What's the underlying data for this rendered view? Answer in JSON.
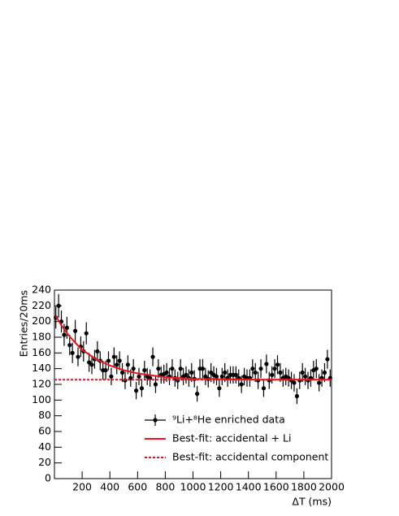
{
  "chart_data": {
    "type": "scatter",
    "xlabel": "ΔT (ms)",
    "ylabel": "Entries/20ms",
    "xlim": [
      0,
      2000
    ],
    "ylim": [
      0,
      240
    ],
    "xticks": [
      200,
      400,
      600,
      800,
      1000,
      1200,
      1400,
      1600,
      1800,
      2000
    ],
    "yticks": [
      0,
      20,
      40,
      60,
      80,
      100,
      120,
      140,
      160,
      180,
      200,
      220,
      240
    ],
    "legend": "bottom-right",
    "series": [
      {
        "name": "⁹Li+⁸He enriched data",
        "color": "#000000",
        "style": "points",
        "x": [
          10,
          30,
          50,
          70,
          90,
          110,
          130,
          150,
          170,
          190,
          210,
          230,
          250,
          270,
          290,
          310,
          330,
          350,
          370,
          390,
          410,
          430,
          450,
          470,
          490,
          510,
          530,
          550,
          570,
          590,
          610,
          630,
          650,
          670,
          690,
          710,
          730,
          750,
          770,
          790,
          810,
          830,
          850,
          870,
          890,
          910,
          930,
          950,
          970,
          990,
          1010,
          1030,
          1050,
          1070,
          1090,
          1110,
          1130,
          1150,
          1170,
          1190,
          1210,
          1230,
          1250,
          1270,
          1290,
          1310,
          1330,
          1350,
          1370,
          1390,
          1410,
          1430,
          1450,
          1470,
          1490,
          1510,
          1530,
          1550,
          1570,
          1590,
          1610,
          1630,
          1650,
          1670,
          1690,
          1710,
          1730,
          1750,
          1770,
          1790,
          1810,
          1830,
          1850,
          1870,
          1890,
          1910,
          1930,
          1950,
          1970,
          1990
        ],
        "values": [
          205,
          220,
          200,
          183,
          192,
          170,
          160,
          188,
          155,
          168,
          162,
          185,
          148,
          145,
          152,
          162,
          150,
          138,
          138,
          150,
          130,
          155,
          145,
          150,
          135,
          125,
          145,
          128,
          140,
          112,
          130,
          115,
          138,
          130,
          128,
          155,
          120,
          140,
          132,
          133,
          135,
          130,
          140,
          128,
          125,
          140,
          130,
          132,
          128,
          135,
          127,
          108,
          140,
          140,
          130,
          127,
          135,
          132,
          130,
          115,
          130,
          135,
          128,
          132,
          132,
          132,
          128,
          120,
          130,
          128,
          128,
          140,
          135,
          125,
          140,
          115,
          146,
          125,
          132,
          140,
          145,
          135,
          128,
          130,
          128,
          125,
          122,
          105,
          125,
          135,
          130,
          125,
          128,
          138,
          140,
          122,
          128,
          135,
          152,
          128
        ],
        "errors": [
          14,
          15,
          14,
          14,
          14,
          13,
          13,
          14,
          12,
          13,
          13,
          14,
          12,
          12,
          12,
          13,
          12,
          12,
          12,
          12,
          11,
          12,
          12,
          12,
          12,
          11,
          12,
          11,
          12,
          11,
          11,
          11,
          12,
          11,
          11,
          12,
          11,
          12,
          11,
          12,
          12,
          11,
          12,
          11,
          11,
          12,
          11,
          11,
          11,
          12,
          11,
          10,
          12,
          12,
          11,
          11,
          12,
          11,
          11,
          11,
          11,
          12,
          11,
          11,
          11,
          11,
          11,
          11,
          11,
          11,
          11,
          12,
          12,
          11,
          12,
          11,
          12,
          11,
          11,
          12,
          12,
          12,
          11,
          11,
          11,
          11,
          11,
          10,
          11,
          12,
          11,
          11,
          11,
          12,
          12,
          11,
          11,
          12,
          12,
          11
        ]
      },
      {
        "name": "Best-fit: accidental + Li",
        "color": "#e8141e",
        "style": "solid",
        "x": [
          10,
          50,
          100,
          150,
          200,
          300,
          400,
          500,
          600,
          800,
          1000,
          1500,
          2000
        ],
        "values": [
          207,
          195,
          183,
          173,
          164,
          152,
          144,
          138,
          134,
          129,
          127,
          126,
          126
        ]
      },
      {
        "name": "Best-fit: accidental component",
        "color": "#e8141e",
        "style": "dotted",
        "x": [
          0,
          2000
        ],
        "values": [
          126,
          126
        ]
      }
    ]
  }
}
